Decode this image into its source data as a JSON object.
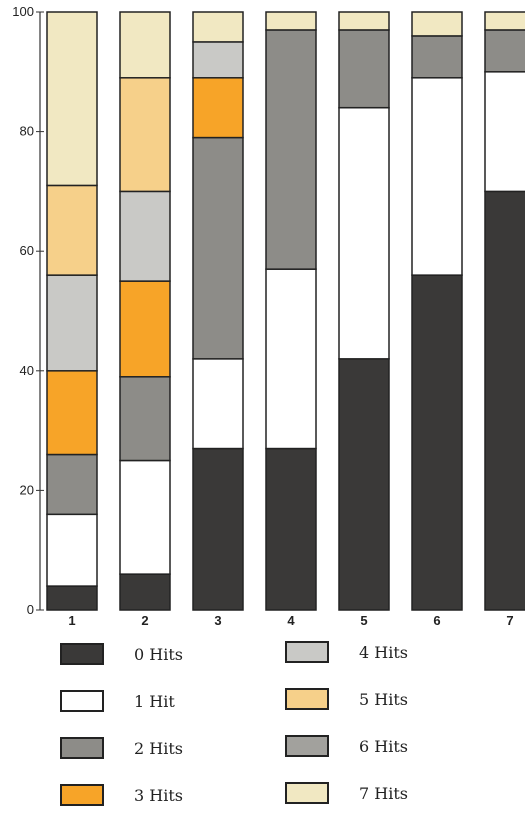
{
  "chart_data": {
    "type": "bar",
    "stacked": true,
    "categories": [
      "1",
      "2",
      "3",
      "4",
      "5",
      "6",
      "7"
    ],
    "ylim": [
      0,
      100
    ],
    "yticks": [
      "0",
      "20",
      "40",
      "60",
      "80",
      "100"
    ],
    "series": [
      {
        "name": "0 Hits",
        "color": "#3a3938",
        "values": [
          4,
          6,
          27,
          27,
          42,
          56,
          70
        ]
      },
      {
        "name": "1 Hit",
        "color": "#ffffff",
        "values": [
          12,
          19,
          15,
          30,
          42,
          33,
          20
        ]
      },
      {
        "name": "2 Hits",
        "color": "#8d8c88",
        "values": [
          10,
          14,
          37,
          40,
          13,
          7,
          7
        ]
      },
      {
        "name": "3 Hits",
        "color": "#f7a428",
        "values": [
          14,
          16,
          10,
          0,
          0,
          0,
          0
        ]
      },
      {
        "name": "4 Hits",
        "color": "#c9c9c6",
        "values": [
          16,
          15,
          6,
          0,
          0,
          0,
          0
        ]
      },
      {
        "name": "5 Hits",
        "color": "#f6d08a",
        "values": [
          15,
          19,
          0,
          0,
          0,
          0,
          0
        ]
      },
      {
        "name": "6 Hits",
        "color": "#a2a19d",
        "values": [
          0,
          0,
          0,
          0,
          0,
          0,
          0
        ]
      },
      {
        "name": "7 Hits",
        "color": "#f1e8c2",
        "values": [
          29,
          11,
          5,
          3,
          3,
          4,
          3
        ]
      }
    ]
  },
  "legend": {
    "items": [
      {
        "label": "0 Hits",
        "color": "#3a3938"
      },
      {
        "label": "1 Hit",
        "color": "#ffffff"
      },
      {
        "label": "2 Hits",
        "color": "#8d8c88"
      },
      {
        "label": "3 Hits",
        "color": "#f7a428"
      },
      {
        "label": "4 Hits",
        "color": "#c9c9c6"
      },
      {
        "label": "5 Hits",
        "color": "#f6d08a"
      },
      {
        "label": "6 Hits",
        "color": "#a2a19d"
      },
      {
        "label": "7 Hits",
        "color": "#f1e8c2"
      }
    ]
  }
}
